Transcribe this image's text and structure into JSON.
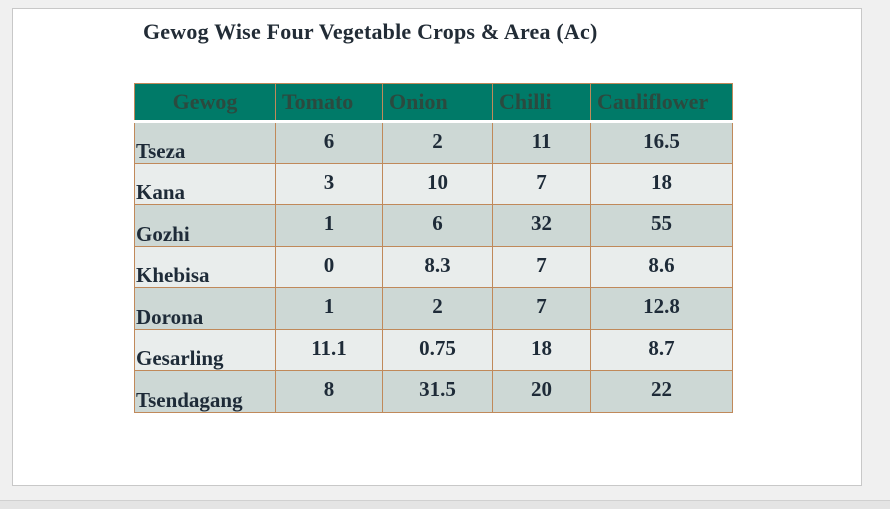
{
  "title": "Gewog Wise Four Vegetable Crops & Area (Ac)",
  "table": {
    "headers": [
      "Gewog",
      "Tomato",
      "Onion",
      "Chilli",
      "Cauliflower"
    ],
    "rows": [
      {
        "gewog": "Tseza",
        "tomato": "6",
        "onion": "2",
        "chilli": "11",
        "cauliflower": "16.5"
      },
      {
        "gewog": "Kana",
        "tomato": "3",
        "onion": "10",
        "chilli": "7",
        "cauliflower": "18"
      },
      {
        "gewog": "Gozhi",
        "tomato": "1",
        "onion": "6",
        "chilli": "32",
        "cauliflower": "55"
      },
      {
        "gewog": "Khebisa",
        "tomato": "0",
        "onion": "8.3",
        "chilli": "7",
        "cauliflower": "8.6"
      },
      {
        "gewog": "Dorona",
        "tomato": "1",
        "onion": "2",
        "chilli": "7",
        "cauliflower": "12.8"
      },
      {
        "gewog": "Gesarling",
        "tomato": "11.1",
        "onion": "0.75",
        "chilli": "18",
        "cauliflower": "8.7"
      },
      {
        "gewog": "Tsendagang",
        "tomato": "8",
        "onion": "31.5",
        "chilli": "20",
        "cauliflower": "22"
      }
    ]
  },
  "colors": {
    "header_background": "#007a68",
    "row_band_dark": "#cdd8d5",
    "row_band_light": "#e9edec",
    "cell_border": "#c0895a"
  }
}
